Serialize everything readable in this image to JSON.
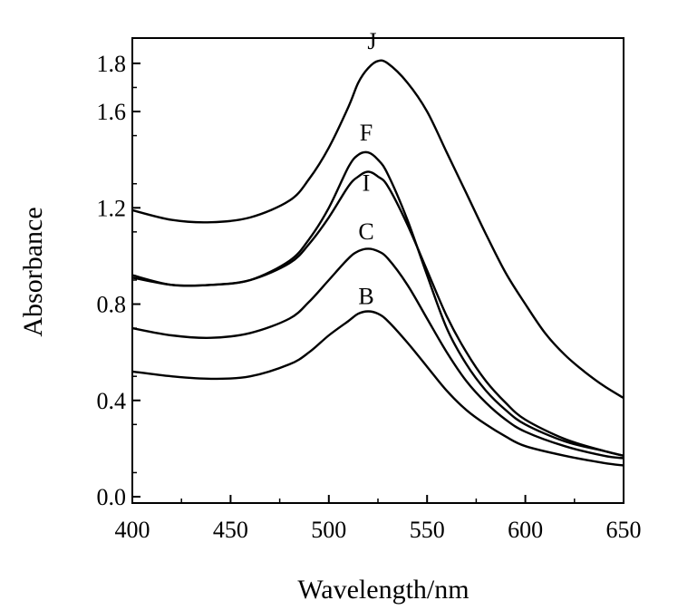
{
  "chart_data": {
    "type": "line",
    "title": "",
    "xlabel": "Wavelength/nm",
    "ylabel": "Absorbance",
    "xlim": [
      400,
      650
    ],
    "ylim": [
      0.0,
      1.9
    ],
    "xticks": [
      400,
      450,
      500,
      550,
      600,
      650
    ],
    "xtick_labels": [
      "400",
      "450",
      "500",
      "550",
      "600",
      "650"
    ],
    "yticks": [
      0.0,
      0.4,
      0.8,
      1.2,
      1.6,
      1.8
    ],
    "ytick_labels": [
      "0.0",
      "0.4",
      "0.8",
      "1.2",
      "1.6",
      "1.8"
    ],
    "grid": false,
    "legend": "none",
    "line_color": "#000000",
    "series": [
      {
        "name": "J",
        "x": [
          400,
          420,
          440,
          460,
          480,
          490,
          500,
          510,
          515,
          520,
          525,
          530,
          540,
          550,
          560,
          570,
          580,
          590,
          600,
          610,
          620,
          630,
          640,
          650
        ],
        "values": [
          1.19,
          1.15,
          1.14,
          1.16,
          1.23,
          1.32,
          1.45,
          1.62,
          1.72,
          1.78,
          1.81,
          1.8,
          1.72,
          1.6,
          1.43,
          1.26,
          1.09,
          0.93,
          0.8,
          0.68,
          0.59,
          0.52,
          0.46,
          0.41
        ]
      },
      {
        "name": "F",
        "x": [
          400,
          420,
          440,
          460,
          480,
          490,
          500,
          510,
          515,
          520,
          525,
          530,
          540,
          550,
          560,
          570,
          580,
          590,
          600,
          620,
          640,
          650
        ],
        "values": [
          0.91,
          0.88,
          0.88,
          0.9,
          0.98,
          1.07,
          1.2,
          1.37,
          1.42,
          1.43,
          1.4,
          1.34,
          1.15,
          0.92,
          0.7,
          0.55,
          0.44,
          0.36,
          0.3,
          0.23,
          0.19,
          0.17
        ]
      },
      {
        "name": "I",
        "x": [
          400,
          420,
          440,
          460,
          480,
          490,
          500,
          510,
          515,
          520,
          525,
          530,
          540,
          550,
          560,
          570,
          580,
          590,
          600,
          620,
          640,
          650
        ],
        "values": [
          0.92,
          0.88,
          0.88,
          0.9,
          0.97,
          1.05,
          1.16,
          1.29,
          1.33,
          1.35,
          1.33,
          1.29,
          1.13,
          0.94,
          0.75,
          0.6,
          0.48,
          0.39,
          0.32,
          0.24,
          0.19,
          0.17
        ]
      },
      {
        "name": "C",
        "x": [
          400,
          420,
          440,
          460,
          480,
          490,
          500,
          510,
          515,
          520,
          525,
          530,
          540,
          550,
          560,
          570,
          580,
          590,
          600,
          620,
          640,
          650
        ],
        "values": [
          0.7,
          0.67,
          0.66,
          0.68,
          0.74,
          0.81,
          0.9,
          0.99,
          1.02,
          1.03,
          1.02,
          0.99,
          0.88,
          0.74,
          0.6,
          0.48,
          0.39,
          0.32,
          0.27,
          0.21,
          0.17,
          0.16
        ]
      },
      {
        "name": "B",
        "x": [
          400,
          420,
          440,
          460,
          480,
          490,
          500,
          510,
          515,
          520,
          525,
          530,
          540,
          550,
          560,
          570,
          580,
          590,
          600,
          620,
          640,
          650
        ],
        "values": [
          0.52,
          0.5,
          0.49,
          0.5,
          0.55,
          0.6,
          0.67,
          0.73,
          0.76,
          0.77,
          0.76,
          0.73,
          0.64,
          0.54,
          0.44,
          0.36,
          0.3,
          0.25,
          0.21,
          0.17,
          0.14,
          0.13
        ]
      }
    ],
    "annotations": [
      {
        "text": "J",
        "x": 522,
        "y": 1.86
      },
      {
        "text": "F",
        "x": 519,
        "y": 1.48
      },
      {
        "text": "I",
        "x": 519,
        "y": 1.27
      },
      {
        "text": "C",
        "x": 519,
        "y": 1.07
      },
      {
        "text": "B",
        "x": 519,
        "y": 0.8
      }
    ]
  }
}
